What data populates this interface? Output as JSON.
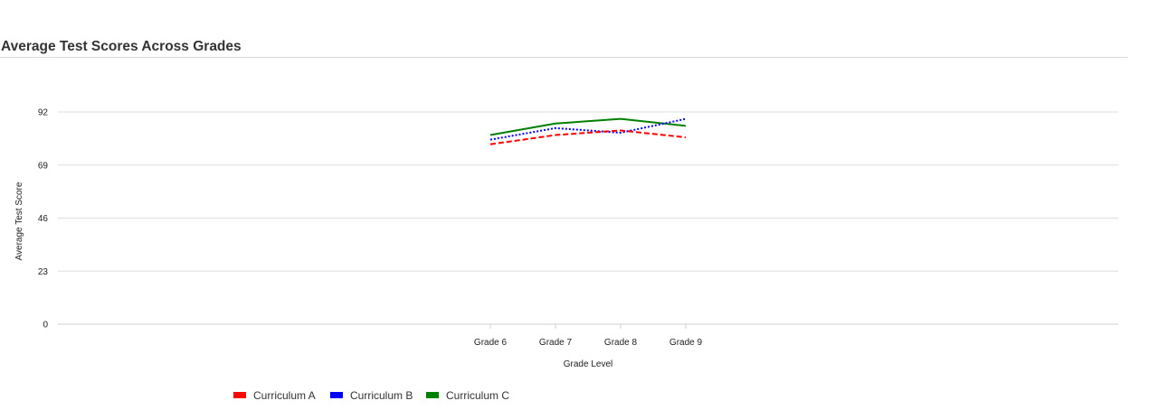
{
  "chart_data": {
    "type": "line",
    "title": "Average Test Scores Across Grades",
    "xlabel": "Grade Level",
    "ylabel": "Average Test Score",
    "categories": [
      "Grade 6",
      "Grade 7",
      "Grade 8",
      "Grade 9"
    ],
    "y_ticks": [
      0,
      23,
      46,
      69,
      92
    ],
    "ylim": [
      0,
      92
    ],
    "grid": true,
    "legend_position": "bottom-left",
    "series": [
      {
        "name": "Curriculum A",
        "values": [
          78,
          82,
          84,
          81
        ],
        "color": "#ff0000",
        "dash": "dashed"
      },
      {
        "name": "Curriculum B",
        "values": [
          80,
          85,
          83,
          89
        ],
        "color": "#0000ff",
        "dash": "dotted"
      },
      {
        "name": "Curriculum C",
        "values": [
          82,
          87,
          89,
          86
        ],
        "color": "#008000",
        "dash": "solid"
      }
    ]
  }
}
